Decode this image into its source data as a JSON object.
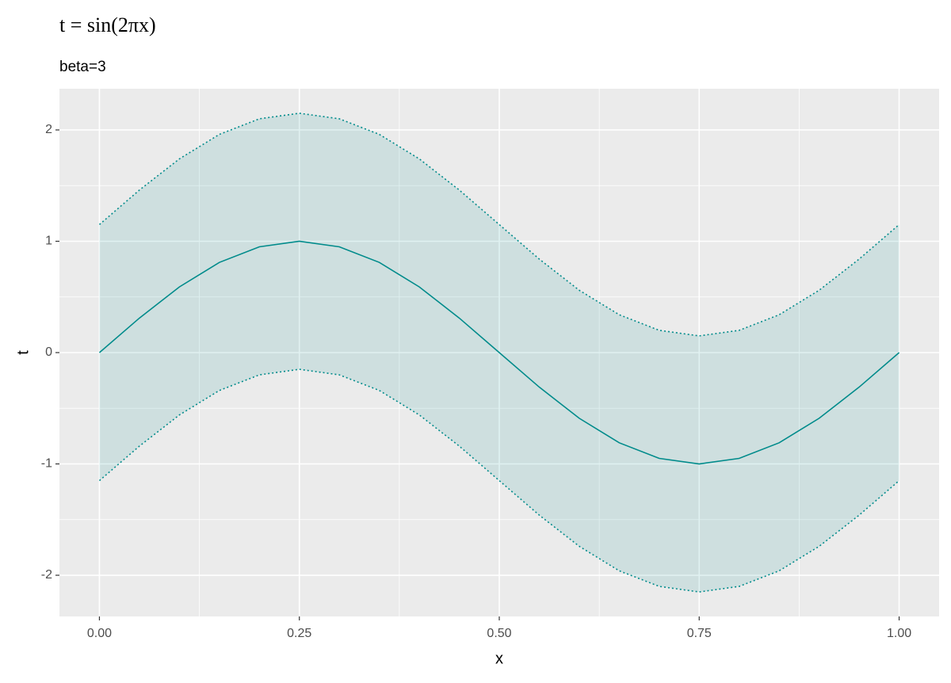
{
  "chart_data": {
    "type": "ribbon-line",
    "title": "t = sin(2πx)",
    "subtitle": "beta=3",
    "xlabel": "x",
    "ylabel": "t",
    "x": [
      0,
      0.05,
      0.1,
      0.15,
      0.2,
      0.25,
      0.3,
      0.35,
      0.4,
      0.45,
      0.5,
      0.55,
      0.6,
      0.65,
      0.7,
      0.75,
      0.8,
      0.85,
      0.9,
      0.95,
      1
    ],
    "values": [
      0,
      0.31,
      0.59,
      0.81,
      0.95,
      1,
      0.95,
      0.81,
      0.59,
      0.31,
      0,
      -0.31,
      -0.59,
      -0.81,
      -0.95,
      -1,
      -0.95,
      -0.81,
      -0.59,
      -0.31,
      0
    ],
    "upper": [
      1.15,
      1.46,
      1.74,
      1.96,
      2.1,
      2.15,
      2.1,
      1.96,
      1.74,
      1.46,
      1.15,
      0.84,
      0.56,
      0.34,
      0.2,
      0.15,
      0.2,
      0.34,
      0.56,
      0.84,
      1.15
    ],
    "lower": [
      -1.15,
      -0.84,
      -0.56,
      -0.34,
      -0.2,
      -0.15,
      -0.2,
      -0.34,
      -0.56,
      -0.84,
      -1.15,
      -1.46,
      -1.74,
      -1.96,
      -2.1,
      -2.15,
      -2.1,
      -1.96,
      -1.74,
      -1.46,
      -1.15
    ],
    "color": "#008b8b",
    "band_color": "#008b8b",
    "xlim": [
      -0.05,
      1.05
    ],
    "ylim": [
      -2.37,
      2.37
    ],
    "xticks": [
      {
        "value": 0,
        "label": "0.00"
      },
      {
        "value": 0.25,
        "label": "0.25"
      },
      {
        "value": 0.5,
        "label": "0.50"
      },
      {
        "value": 0.75,
        "label": "0.75"
      },
      {
        "value": 1,
        "label": "1.00"
      }
    ],
    "yticks": [
      -2,
      -1,
      0,
      1,
      2
    ],
    "xminor": [
      0.125,
      0.375,
      0.625,
      0.875
    ],
    "yminor": [
      -1.5,
      -0.5,
      0.5,
      1.5
    ],
    "grid": true
  }
}
